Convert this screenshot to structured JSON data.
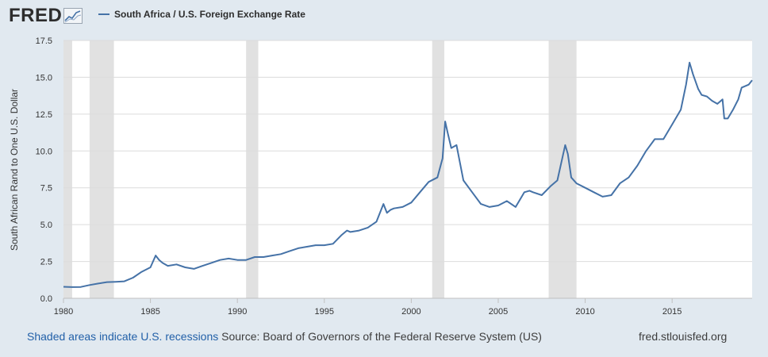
{
  "brand": {
    "logo_text": "FRED"
  },
  "legend": {
    "series_label": "South Africa / U.S. Foreign Exchange Rate",
    "color": "#4572a7"
  },
  "footer": {
    "recession_note": "Shaded areas indicate U.S. recessions",
    "source": "Source: Board of Governors of the Federal Reserve System (US)",
    "site": "fred.stlouisfed.org"
  },
  "chart_data": {
    "type": "line",
    "ylabel": "South African Rand to One U.S. Dollar",
    "xlabel": "",
    "xlim": [
      1980,
      2019.6
    ],
    "ylim": [
      0,
      17.5
    ],
    "x_ticks": [
      1980,
      1985,
      1990,
      1995,
      2000,
      2005,
      2010,
      2015
    ],
    "y_ticks": [
      "0.0",
      "2.5",
      "5.0",
      "7.5",
      "10.0",
      "12.5",
      "15.0",
      "17.5"
    ],
    "grid": true,
    "recessions": [
      [
        1980.0,
        1980.5
      ],
      [
        1981.5,
        1982.9
      ],
      [
        1990.5,
        1991.2
      ],
      [
        2001.2,
        2001.9
      ],
      [
        2007.9,
        2009.5
      ]
    ],
    "series": [
      {
        "name": "South Africa / U.S. Foreign Exchange Rate",
        "color": "#4572a7",
        "x": [
          1980.0,
          1980.5,
          1981.0,
          1981.5,
          1982.0,
          1982.5,
          1983.0,
          1983.5,
          1984.0,
          1984.5,
          1985.0,
          1985.3,
          1985.5,
          1985.7,
          1986.0,
          1986.5,
          1987.0,
          1987.5,
          1988.0,
          1988.5,
          1989.0,
          1989.5,
          1990.0,
          1990.5,
          1991.0,
          1991.5,
          1992.0,
          1992.5,
          1993.0,
          1993.5,
          1994.0,
          1994.5,
          1995.0,
          1995.5,
          1996.0,
          1996.3,
          1996.5,
          1997.0,
          1997.5,
          1998.0,
          1998.4,
          1998.6,
          1998.8,
          1999.0,
          1999.5,
          2000.0,
          2000.5,
          2001.0,
          2001.5,
          2001.8,
          2001.95,
          2002.1,
          2002.3,
          2002.6,
          2003.0,
          2003.5,
          2004.0,
          2004.5,
          2005.0,
          2005.5,
          2006.0,
          2006.5,
          2006.8,
          2007.0,
          2007.5,
          2008.0,
          2008.4,
          2008.7,
          2008.85,
          2009.0,
          2009.2,
          2009.5,
          2010.0,
          2010.5,
          2011.0,
          2011.5,
          2012.0,
          2012.5,
          2013.0,
          2013.5,
          2014.0,
          2014.5,
          2015.0,
          2015.5,
          2015.8,
          2016.0,
          2016.2,
          2016.5,
          2016.7,
          2017.0,
          2017.3,
          2017.6,
          2017.9,
          2018.0,
          2018.2,
          2018.5,
          2018.8,
          2019.0,
          2019.2,
          2019.4,
          2019.6
        ],
        "values": [
          0.78,
          0.76,
          0.77,
          0.9,
          1.0,
          1.1,
          1.12,
          1.15,
          1.4,
          1.8,
          2.1,
          2.9,
          2.6,
          2.4,
          2.2,
          2.3,
          2.1,
          2.0,
          2.2,
          2.4,
          2.6,
          2.7,
          2.6,
          2.6,
          2.8,
          2.8,
          2.9,
          3.0,
          3.2,
          3.4,
          3.5,
          3.6,
          3.6,
          3.7,
          4.3,
          4.6,
          4.5,
          4.6,
          4.8,
          5.2,
          6.4,
          5.8,
          6.0,
          6.1,
          6.2,
          6.5,
          7.2,
          7.9,
          8.2,
          9.5,
          12.0,
          11.2,
          10.2,
          10.4,
          8.0,
          7.2,
          6.4,
          6.2,
          6.3,
          6.6,
          6.2,
          7.2,
          7.3,
          7.2,
          7.0,
          7.6,
          8.0,
          9.6,
          10.4,
          9.8,
          8.2,
          7.8,
          7.5,
          7.2,
          6.9,
          7.0,
          7.8,
          8.2,
          9.0,
          10.0,
          10.8,
          10.8,
          11.8,
          12.8,
          14.5,
          16.0,
          15.2,
          14.2,
          13.8,
          13.7,
          13.4,
          13.2,
          13.5,
          12.2,
          12.2,
          12.8,
          13.5,
          14.3,
          14.4,
          14.5,
          14.8
        ]
      }
    ]
  }
}
